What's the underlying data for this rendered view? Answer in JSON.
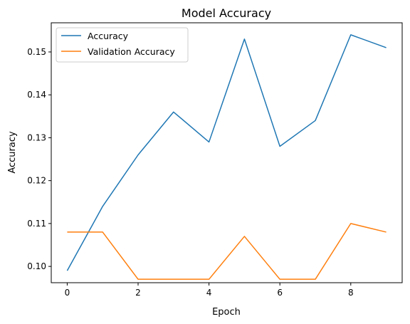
{
  "chart_data": {
    "type": "line",
    "title": "Model Accuracy",
    "xlabel": "Epoch",
    "ylabel": "Accuracy",
    "x": [
      0,
      1,
      2,
      3,
      4,
      5,
      6,
      7,
      8,
      9
    ],
    "xlim": [
      -0.45,
      9.45
    ],
    "ylim": [
      0.0962,
      0.1568
    ],
    "xticks": [
      0,
      2,
      4,
      6,
      8
    ],
    "yticks": [
      0.1,
      0.11,
      0.12,
      0.13,
      0.14,
      0.15
    ],
    "xtick_labels": [
      "0",
      "2",
      "4",
      "6",
      "8"
    ],
    "ytick_labels": [
      "0.10",
      "0.11",
      "0.12",
      "0.13",
      "0.14",
      "0.15"
    ],
    "grid": false,
    "legend_position": "top-left",
    "series": [
      {
        "name": "Accuracy",
        "color": "#1f77b4",
        "values": [
          0.099,
          0.114,
          0.126,
          0.136,
          0.129,
          0.153,
          0.128,
          0.134,
          0.154,
          0.151
        ]
      },
      {
        "name": "Validation Accuracy",
        "color": "#ff7f0e",
        "values": [
          0.108,
          0.108,
          0.097,
          0.097,
          0.097,
          0.107,
          0.097,
          0.097,
          0.11,
          0.108
        ]
      }
    ]
  }
}
